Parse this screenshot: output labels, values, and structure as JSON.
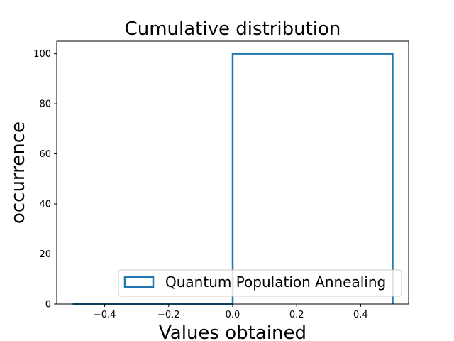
{
  "chart_data": {
    "type": "bar",
    "histtype": "step",
    "title": "Cumulative distribution",
    "xlabel": "Values obtained",
    "ylabel": "occurrence",
    "xlim": [
      -0.55,
      0.55
    ],
    "ylim": [
      0,
      105
    ],
    "xticks": [
      -0.4,
      -0.2,
      0.0,
      0.2,
      0.4
    ],
    "xtick_labels": [
      "−0.4",
      "−0.2",
      "0.0",
      "0.2",
      "0.4"
    ],
    "yticks": [
      0,
      20,
      40,
      60,
      80,
      100
    ],
    "ytick_labels": [
      "0",
      "20",
      "40",
      "60",
      "80",
      "100"
    ],
    "bin_edges": [
      -0.5,
      0.0,
      0.5
    ],
    "counts": [
      0,
      100
    ],
    "grid": false,
    "legend_position": "lower-right",
    "series": [
      {
        "name": "Quantum Population Annealing",
        "color": "#1f77b4"
      }
    ]
  }
}
